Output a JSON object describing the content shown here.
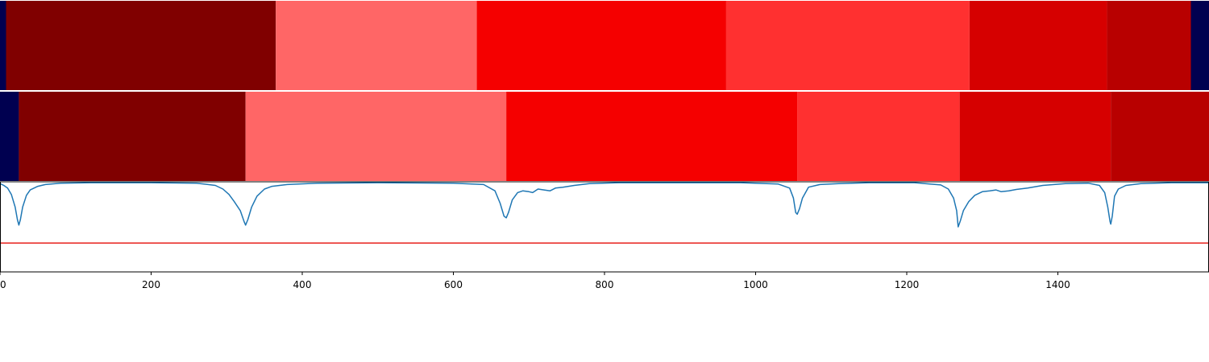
{
  "chart_data": {
    "type": "segmentation_plot",
    "x_range": [
      0,
      1600
    ],
    "x_ticks": [
      0,
      200,
      400,
      600,
      800,
      1000,
      1200,
      1400
    ],
    "x_tick_labels": [
      "0",
      "200",
      "400",
      "600",
      "800",
      "1000",
      "1200",
      "1400"
    ],
    "colors": {
      "navy": "#000050",
      "darkred": "#800000",
      "salmon": "#ff6666",
      "red": "#f50000",
      "brightred": "#ff3030",
      "crimson": "#d60000",
      "maroon": "#b80000",
      "curve": "#1f77b4",
      "threshold": "#e8201c"
    },
    "segment_rows": [
      {
        "segments": [
          {
            "start": 0,
            "end": 8,
            "color": "navy"
          },
          {
            "start": 8,
            "end": 365,
            "color": "darkred"
          },
          {
            "start": 365,
            "end": 631,
            "color": "salmon"
          },
          {
            "start": 631,
            "end": 961,
            "color": "red"
          },
          {
            "start": 961,
            "end": 1283,
            "color": "brightred"
          },
          {
            "start": 1283,
            "end": 1465,
            "color": "crimson"
          },
          {
            "start": 1465,
            "end": 1576,
            "color": "maroon"
          },
          {
            "start": 1576,
            "end": 1600,
            "color": "navy"
          }
        ]
      },
      {
        "segments": [
          {
            "start": 0,
            "end": 25,
            "color": "navy"
          },
          {
            "start": 25,
            "end": 325,
            "color": "darkred"
          },
          {
            "start": 325,
            "end": 670,
            "color": "salmon"
          },
          {
            "start": 670,
            "end": 1055,
            "color": "red"
          },
          {
            "start": 1055,
            "end": 1270,
            "color": "brightred"
          },
          {
            "start": 1270,
            "end": 1470,
            "color": "crimson"
          },
          {
            "start": 1470,
            "end": 1600,
            "color": "maroon"
          }
        ]
      }
    ],
    "curve": {
      "y_range": [
        0,
        1
      ],
      "threshold": 0.32,
      "points": [
        [
          0,
          0.98
        ],
        [
          5,
          0.96
        ],
        [
          10,
          0.93
        ],
        [
          15,
          0.86
        ],
        [
          20,
          0.72
        ],
        [
          23,
          0.58
        ],
        [
          25,
          0.52
        ],
        [
          27,
          0.58
        ],
        [
          30,
          0.72
        ],
        [
          35,
          0.85
        ],
        [
          40,
          0.91
        ],
        [
          50,
          0.95
        ],
        [
          60,
          0.97
        ],
        [
          80,
          0.985
        ],
        [
          120,
          0.99
        ],
        [
          200,
          0.99
        ],
        [
          260,
          0.985
        ],
        [
          285,
          0.96
        ],
        [
          295,
          0.92
        ],
        [
          303,
          0.86
        ],
        [
          310,
          0.78
        ],
        [
          318,
          0.68
        ],
        [
          323,
          0.56
        ],
        [
          325,
          0.52
        ],
        [
          328,
          0.58
        ],
        [
          333,
          0.72
        ],
        [
          340,
          0.84
        ],
        [
          350,
          0.92
        ],
        [
          360,
          0.95
        ],
        [
          380,
          0.97
        ],
        [
          420,
          0.985
        ],
        [
          500,
          0.99
        ],
        [
          600,
          0.985
        ],
        [
          640,
          0.97
        ],
        [
          655,
          0.9
        ],
        [
          662,
          0.76
        ],
        [
          667,
          0.62
        ],
        [
          670,
          0.6
        ],
        [
          673,
          0.66
        ],
        [
          678,
          0.8
        ],
        [
          685,
          0.88
        ],
        [
          692,
          0.9
        ],
        [
          700,
          0.89
        ],
        [
          705,
          0.88
        ],
        [
          712,
          0.92
        ],
        [
          720,
          0.91
        ],
        [
          728,
          0.9
        ],
        [
          735,
          0.93
        ],
        [
          745,
          0.94
        ],
        [
          760,
          0.96
        ],
        [
          780,
          0.98
        ],
        [
          820,
          0.99
        ],
        [
          900,
          0.99
        ],
        [
          980,
          0.99
        ],
        [
          1030,
          0.975
        ],
        [
          1045,
          0.93
        ],
        [
          1050,
          0.82
        ],
        [
          1053,
          0.66
        ],
        [
          1055,
          0.64
        ],
        [
          1058,
          0.7
        ],
        [
          1062,
          0.82
        ],
        [
          1070,
          0.94
        ],
        [
          1085,
          0.97
        ],
        [
          1110,
          0.98
        ],
        [
          1150,
          0.99
        ],
        [
          1210,
          0.99
        ],
        [
          1245,
          0.965
        ],
        [
          1255,
          0.92
        ],
        [
          1262,
          0.82
        ],
        [
          1266,
          0.68
        ],
        [
          1268,
          0.5
        ],
        [
          1271,
          0.57
        ],
        [
          1275,
          0.68
        ],
        [
          1282,
          0.78
        ],
        [
          1290,
          0.85
        ],
        [
          1300,
          0.89
        ],
        [
          1310,
          0.9
        ],
        [
          1318,
          0.91
        ],
        [
          1325,
          0.89
        ],
        [
          1335,
          0.9
        ],
        [
          1345,
          0.915
        ],
        [
          1360,
          0.93
        ],
        [
          1380,
          0.96
        ],
        [
          1410,
          0.98
        ],
        [
          1440,
          0.985
        ],
        [
          1455,
          0.96
        ],
        [
          1462,
          0.88
        ],
        [
          1466,
          0.72
        ],
        [
          1469,
          0.56
        ],
        [
          1470,
          0.53
        ],
        [
          1472,
          0.62
        ],
        [
          1475,
          0.84
        ],
        [
          1480,
          0.92
        ],
        [
          1490,
          0.96
        ],
        [
          1510,
          0.98
        ],
        [
          1550,
          0.99
        ],
        [
          1600,
          0.99
        ]
      ]
    }
  }
}
